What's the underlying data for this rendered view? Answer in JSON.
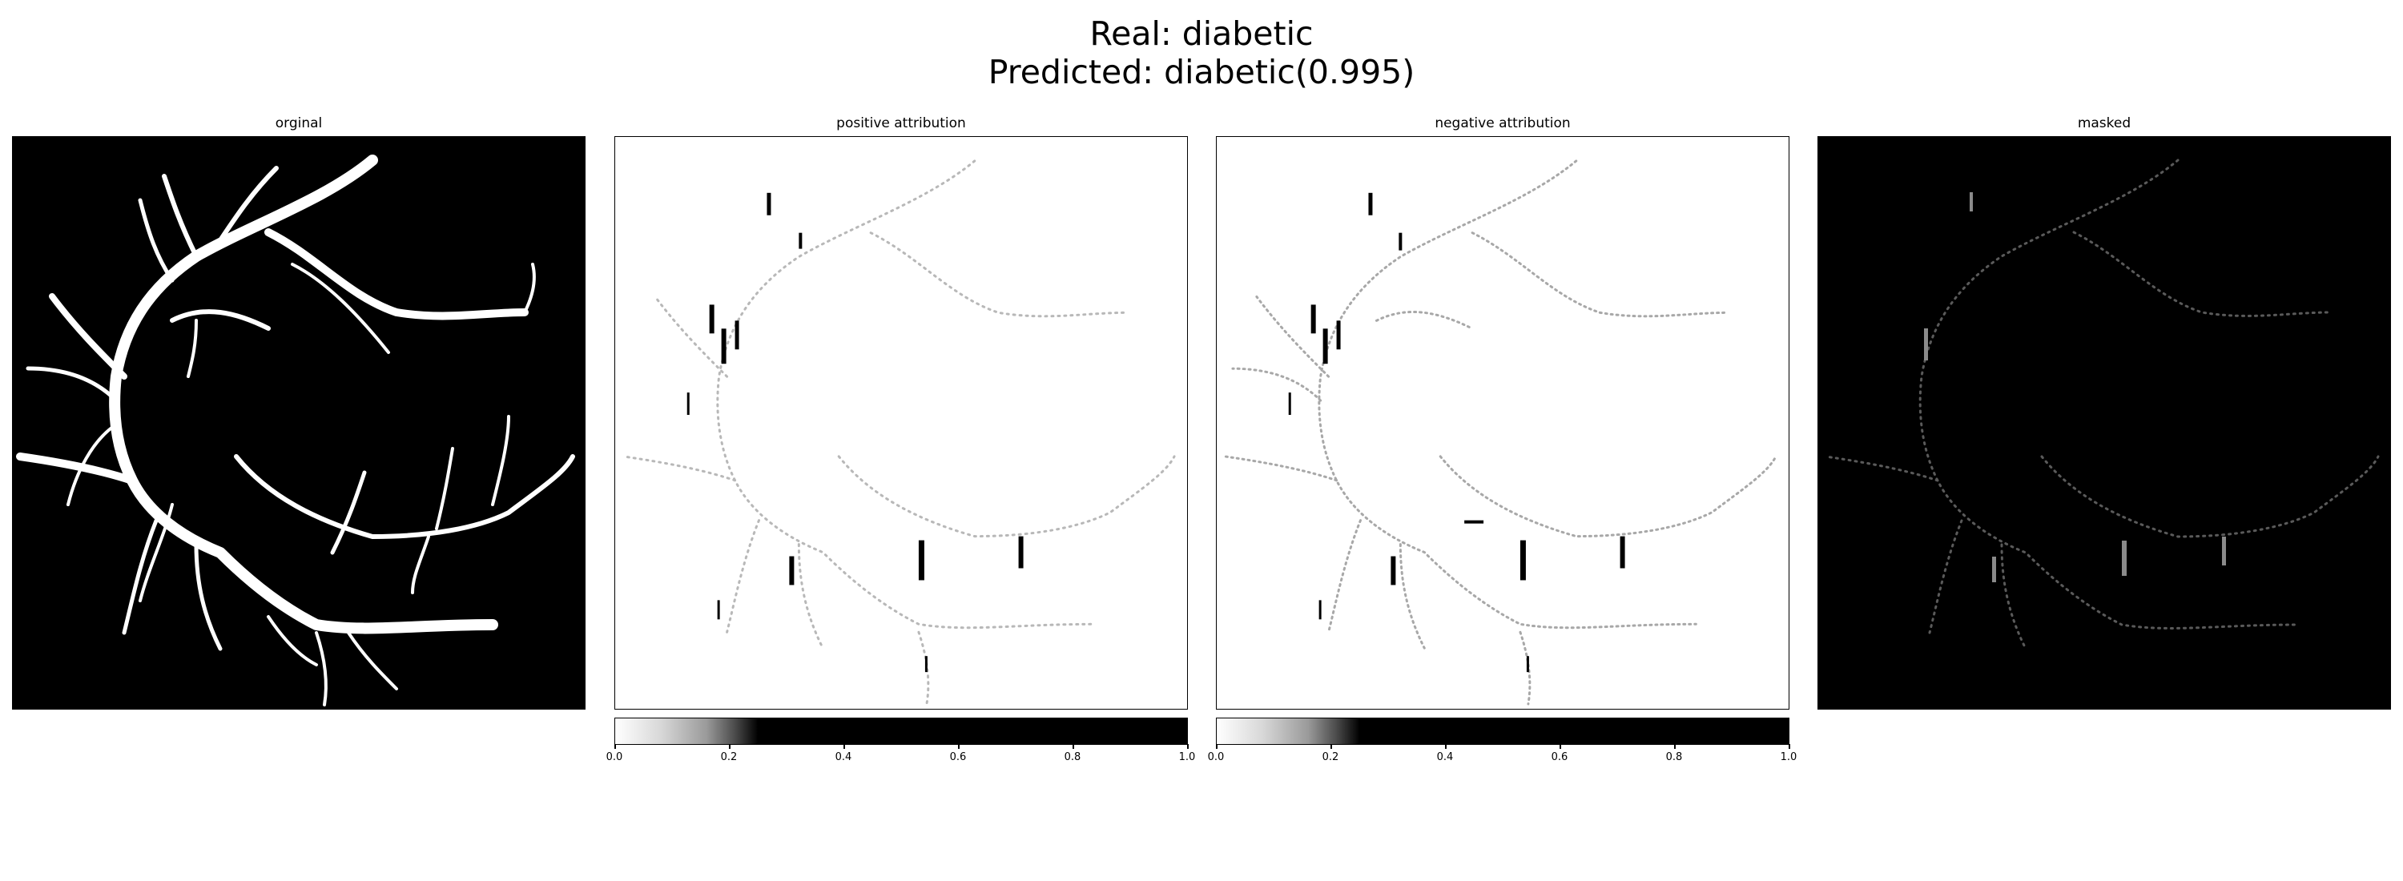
{
  "figure": {
    "title_line1": "Real: diabetic",
    "title_line2": "Predicted: diabetic(0.995)"
  },
  "panels": [
    {
      "title": "orginal",
      "background": "#000000",
      "vessel_color": "#ffffff"
    },
    {
      "title": "positive attribution",
      "background": "#ffffff",
      "vessel_color": "#000000"
    },
    {
      "title": "negative attribution",
      "background": "#ffffff",
      "vessel_color": "#000000"
    },
    {
      "title": "masked",
      "background": "#000000",
      "vessel_color": "#ffffff"
    }
  ],
  "colorbar": {
    "cmap": "grayscale, white to black, saturating at 0.25",
    "range": [
      0.0,
      1.0
    ],
    "ticks": [
      "0.0",
      "0.2",
      "0.4",
      "0.6",
      "0.8",
      "1.0"
    ]
  }
}
